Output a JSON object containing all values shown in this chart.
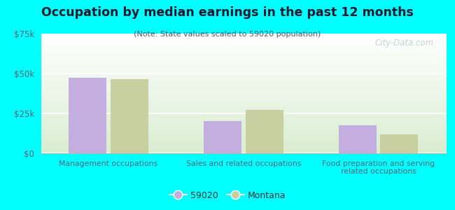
{
  "title": "Occupation by median earnings in the past 12 months",
  "subtitle": "(Note: State values scaled to 59020 population)",
  "categories": [
    "Management occupations",
    "Sales and related occupations",
    "Food preparation and serving\nrelated occupations"
  ],
  "values_59020": [
    47500,
    20000,
    17500
  ],
  "values_montana": [
    46500,
    27000,
    12000
  ],
  "color_59020": "#c4aee0",
  "color_montana": "#c8cfa0",
  "ylim": [
    0,
    75000
  ],
  "yticks": [
    0,
    25000,
    50000,
    75000
  ],
  "ytick_labels": [
    "$0",
    "$25k",
    "$50k",
    "$75k"
  ],
  "background_color": "#00ffff",
  "title_color": "#1a1a2e",
  "subtitle_color": "#555566",
  "tick_color": "#556677",
  "legend_label_59020": "59020",
  "legend_label_montana": "Montana",
  "watermark": "City-Data.com"
}
